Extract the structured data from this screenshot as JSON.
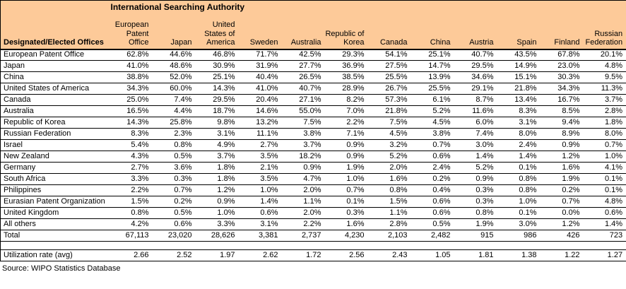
{
  "title": "International Searching Authority",
  "source": "Source: WIPO Statistics Database",
  "colors": {
    "header_bg": "#FDCA99",
    "border": "#000000",
    "text": "#000000"
  },
  "table": {
    "designated_label": "Designated/Elected Offices",
    "columns": [
      "European\nPatent\nOffice",
      "Japan",
      "United\nStates of\nAmerica",
      "Sweden",
      "Australia",
      "Republic of\nKorea",
      "Canada",
      "China",
      "Austria",
      "Spain",
      "Finland",
      "Russian\nFederation"
    ],
    "rows": [
      {
        "label": "European Patent Office",
        "values": [
          "62.8%",
          "44.6%",
          "46.8%",
          "71.7%",
          "42.5%",
          "29.3%",
          "54.1%",
          "25.1%",
          "40.7%",
          "43.5%",
          "67.8%",
          "20.1%"
        ]
      },
      {
        "label": "Japan",
        "values": [
          "41.0%",
          "48.6%",
          "30.9%",
          "31.9%",
          "27.7%",
          "36.9%",
          "27.5%",
          "14.7%",
          "29.5%",
          "14.9%",
          "23.0%",
          "4.8%"
        ]
      },
      {
        "label": "China",
        "values": [
          "38.8%",
          "52.0%",
          "25.1%",
          "40.4%",
          "26.5%",
          "38.5%",
          "25.5%",
          "13.9%",
          "34.6%",
          "15.1%",
          "30.3%",
          "9.5%"
        ]
      },
      {
        "label": "United States of America",
        "values": [
          "34.3%",
          "60.0%",
          "14.3%",
          "41.0%",
          "40.7%",
          "28.9%",
          "26.7%",
          "25.5%",
          "29.1%",
          "21.8%",
          "34.3%",
          "11.3%"
        ]
      },
      {
        "label": "Canada",
        "values": [
          "25.0%",
          "7.4%",
          "29.5%",
          "20.4%",
          "27.1%",
          "8.2%",
          "57.3%",
          "6.1%",
          "8.7%",
          "13.4%",
          "16.7%",
          "3.7%"
        ]
      },
      {
        "label": "Australia",
        "values": [
          "16.5%",
          "4.4%",
          "18.7%",
          "14.6%",
          "55.0%",
          "7.0%",
          "21.8%",
          "5.2%",
          "11.6%",
          "8.3%",
          "8.5%",
          "2.8%"
        ]
      },
      {
        "label": "Republic of Korea",
        "values": [
          "14.3%",
          "25.8%",
          "9.8%",
          "13.2%",
          "7.5%",
          "2.2%",
          "7.5%",
          "4.5%",
          "6.0%",
          "3.1%",
          "9.4%",
          "1.8%"
        ]
      },
      {
        "label": "Russian Federation",
        "values": [
          "8.3%",
          "2.3%",
          "3.1%",
          "11.1%",
          "3.8%",
          "7.1%",
          "4.5%",
          "3.8%",
          "7.4%",
          "8.0%",
          "8.9%",
          "8.0%"
        ]
      },
      {
        "label": "Israel",
        "values": [
          "5.4%",
          "0.8%",
          "4.9%",
          "2.7%",
          "3.7%",
          "0.9%",
          "3.2%",
          "0.7%",
          "3.0%",
          "2.4%",
          "0.9%",
          "0.7%"
        ]
      },
      {
        "label": "New Zealand",
        "values": [
          "4.3%",
          "0.5%",
          "3.7%",
          "3.5%",
          "18.2%",
          "0.9%",
          "5.2%",
          "0.6%",
          "1.4%",
          "1.4%",
          "1.2%",
          "1.0%"
        ]
      },
      {
        "label": "Germany",
        "values": [
          "2.7%",
          "3.6%",
          "1.8%",
          "2.1%",
          "0.9%",
          "1.9%",
          "2.0%",
          "2.4%",
          "5.2%",
          "0.1%",
          "1.6%",
          "4.1%"
        ]
      },
      {
        "label": "South Africa",
        "values": [
          "3.3%",
          "0.3%",
          "1.8%",
          "3.5%",
          "4.7%",
          "1.0%",
          "1.6%",
          "0.2%",
          "0.9%",
          "0.8%",
          "1.9%",
          "0.1%"
        ]
      },
      {
        "label": "Philippines",
        "values": [
          "2.2%",
          "0.7%",
          "1.2%",
          "1.0%",
          "2.0%",
          "0.7%",
          "0.8%",
          "0.4%",
          "0.3%",
          "0.8%",
          "0.2%",
          "0.1%"
        ]
      },
      {
        "label": "Eurasian Patent Organization",
        "values": [
          "1.5%",
          "0.2%",
          "0.9%",
          "1.4%",
          "1.1%",
          "0.1%",
          "1.5%",
          "0.6%",
          "0.3%",
          "1.0%",
          "0.7%",
          "4.8%"
        ]
      },
      {
        "label": "United Kingdom",
        "values": [
          "0.8%",
          "0.5%",
          "1.0%",
          "0.6%",
          "2.0%",
          "0.3%",
          "1.1%",
          "0.6%",
          "0.8%",
          "0.1%",
          "0.0%",
          "0.6%"
        ]
      },
      {
        "label": "All others",
        "values": [
          "4.2%",
          "0.6%",
          "3.3%",
          "3.1%",
          "2.2%",
          "1.6%",
          "2.8%",
          "0.5%",
          "1.9%",
          "3.0%",
          "1.2%",
          "1.4%"
        ]
      }
    ],
    "total_row": {
      "label": "Total",
      "values": [
        "67,113",
        "23,020",
        "28,626",
        "3,381",
        "2,737",
        "4,230",
        "2,103",
        "2,482",
        "915",
        "986",
        "426",
        "723"
      ]
    },
    "utilization_row": {
      "label": "Utilization rate (avg)",
      "values": [
        "2.66",
        "2.52",
        "1.97",
        "2.62",
        "1.72",
        "2.56",
        "2.43",
        "1.05",
        "1.81",
        "1.38",
        "1.22",
        "1.27"
      ]
    }
  }
}
